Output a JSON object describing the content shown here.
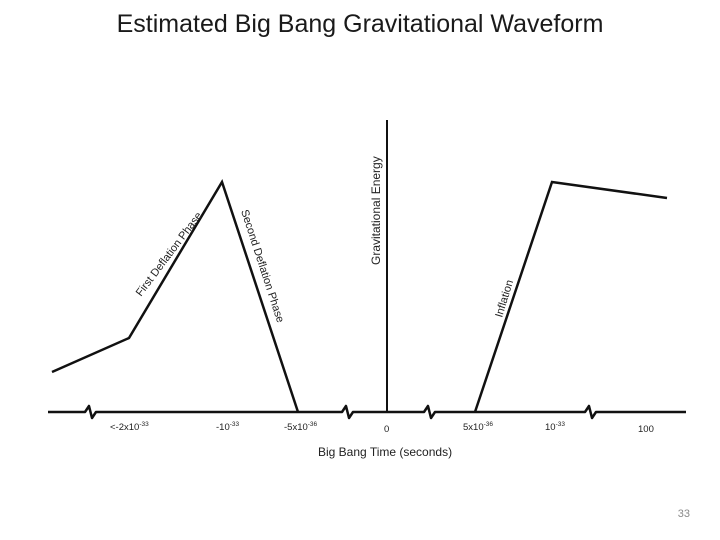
{
  "slide": {
    "title": "Estimated Big Bang Gravitational Waveform",
    "page_number": "33"
  },
  "diagram": {
    "y_axis_label": "Gravitational Energy",
    "x_axis_label": "Big Bang Time (seconds)",
    "phase_labels": {
      "first_deflation": "First Deflation Phase",
      "second_deflation": "Second Deflation Phase",
      "inflation": "Inflation"
    },
    "ticks": {
      "t1": {
        "prefix": "<-2x10",
        "exp": "-33"
      },
      "t2": {
        "prefix": "-10",
        "exp": "-33"
      },
      "t3": {
        "prefix": "-5x10",
        "exp": "-36"
      },
      "t4": {
        "prefix": "0",
        "exp": ""
      },
      "t5": {
        "prefix": "5x10",
        "exp": "-36"
      },
      "t6": {
        "prefix": "10",
        "exp": "-33"
      },
      "t7": {
        "prefix": "100",
        "exp": ""
      }
    },
    "line_color": "#111111"
  }
}
